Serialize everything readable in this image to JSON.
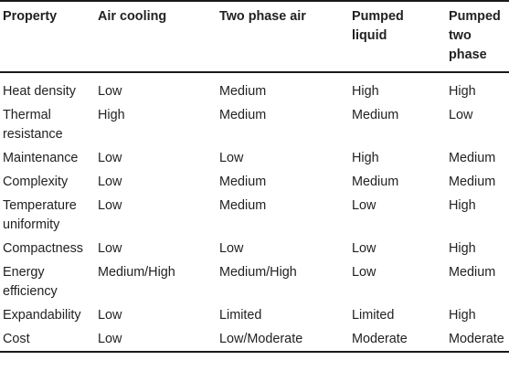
{
  "table": {
    "headers": [
      "Property",
      "Air cooling",
      "Two phase air",
      "Pumped liquid",
      "Pumped two phase"
    ],
    "rows": [
      [
        "Heat density",
        "Low",
        "Medium",
        "High",
        "High"
      ],
      [
        "Thermal resistance",
        "High",
        "Medium",
        "Medium",
        "Low"
      ],
      [
        "Maintenance",
        "Low",
        "Low",
        "High",
        "Medium"
      ],
      [
        "Complexity",
        "Low",
        "Medium",
        "Medium",
        "Medium"
      ],
      [
        "Temperature uniformity",
        "Low",
        "Medium",
        "Low",
        "High"
      ],
      [
        "Compactness",
        "Low",
        "Low",
        "Low",
        "High"
      ],
      [
        "Energy efficiency",
        "Medium/High",
        "Medium/High",
        "Low",
        "Medium"
      ],
      [
        "Expandability",
        "Low",
        "Limited",
        "Limited",
        "High"
      ],
      [
        "Cost",
        "Low",
        "Low/Moderate",
        "Moderate",
        "Moderate"
      ]
    ]
  }
}
